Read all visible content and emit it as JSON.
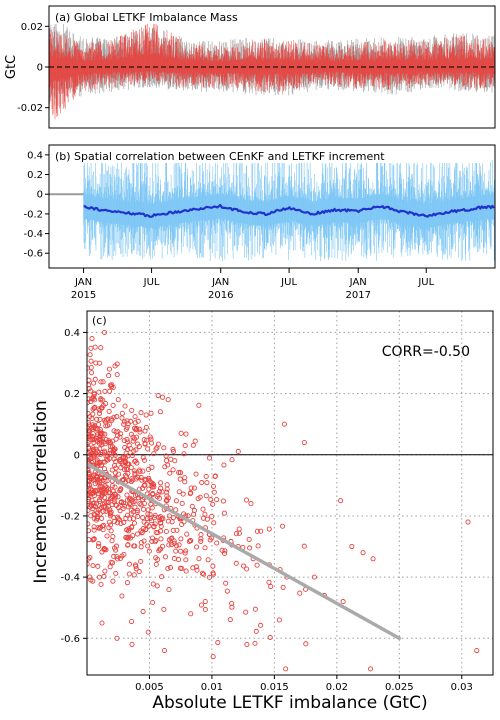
{
  "chart_data": [
    {
      "panel": "a",
      "type": "line",
      "title": "(a) Global LETKF Imbalance Mass",
      "ylabel": "GtC",
      "ylim": [
        -0.03,
        0.03
      ],
      "yticks": [
        -0.02,
        0,
        0.02
      ],
      "ytick_labels": [
        "-0.02",
        "0",
        "0.02"
      ],
      "x_range": [
        "2014-10-01",
        "2017-12-31"
      ],
      "reference_line": {
        "y": 0,
        "style": "dashed"
      },
      "series": [
        {
          "role": "spread",
          "color": "#9a9a9a",
          "x": [
            "2014-10",
            "2015-01",
            "2015-04",
            "2015-07",
            "2015-10",
            "2016-01",
            "2016-04",
            "2016-07",
            "2016-10",
            "2017-01",
            "2017-04",
            "2017-07",
            "2017-10",
            "2017-12"
          ],
          "low": [
            -0.022,
            -0.014,
            -0.012,
            -0.01,
            -0.013,
            -0.012,
            -0.014,
            -0.014,
            -0.011,
            -0.012,
            -0.014,
            -0.011,
            -0.012,
            -0.013
          ],
          "high": [
            0.028,
            0.014,
            0.016,
            0.02,
            0.014,
            0.013,
            0.015,
            0.014,
            0.013,
            0.014,
            0.015,
            0.015,
            0.017,
            0.016
          ]
        },
        {
          "role": "imbalance",
          "color": "#e8433f",
          "x": [
            "2014-10",
            "2015-01",
            "2015-04",
            "2015-07",
            "2015-10",
            "2016-01",
            "2016-04",
            "2016-07",
            "2016-10",
            "2017-01",
            "2017-04",
            "2017-07",
            "2017-10",
            "2017-12"
          ],
          "low": [
            -0.03,
            -0.012,
            -0.01,
            -0.008,
            -0.011,
            -0.01,
            -0.013,
            -0.012,
            -0.009,
            -0.011,
            -0.012,
            -0.009,
            -0.01,
            -0.011
          ],
          "high": [
            0.02,
            0.012,
            0.015,
            0.025,
            0.012,
            0.011,
            0.014,
            0.013,
            0.011,
            0.012,
            0.014,
            0.013,
            0.016,
            0.014
          ]
        }
      ]
    },
    {
      "panel": "b",
      "type": "line",
      "title": "(b) Spatial correlation between CEnKF and LETKF increment",
      "ylim": [
        -0.75,
        0.5
      ],
      "yticks": [
        -0.6,
        -0.4,
        -0.2,
        0,
        0.2,
        0.4
      ],
      "ytick_labels": [
        "-0.6",
        "-0.4",
        "-0.2",
        "0",
        "0.2",
        "0.4"
      ],
      "x_range": [
        "2014-10-01",
        "2017-12-31"
      ],
      "xticks": [
        {
          "date": "2015-01-01",
          "label": "JAN",
          "year": "2015"
        },
        {
          "date": "2015-07-01",
          "label": "JUL",
          "year": ""
        },
        {
          "date": "2016-01-01",
          "label": "JAN",
          "year": "2016"
        },
        {
          "date": "2016-07-01",
          "label": "JUL",
          "year": ""
        },
        {
          "date": "2017-01-01",
          "label": "JAN",
          "year": "2017"
        },
        {
          "date": "2017-07-01",
          "label": "JUL",
          "year": ""
        }
      ],
      "series": [
        {
          "role": "daily",
          "color": "#7cc6f5",
          "start": "2015-01-01",
          "low": -0.68,
          "high": 0.42
        },
        {
          "role": "smoothed",
          "color": "#2233cc",
          "x": [
            "2015-01",
            "2015-03",
            "2015-05",
            "2015-07",
            "2015-09",
            "2015-11",
            "2016-01",
            "2016-03",
            "2016-05",
            "2016-07",
            "2016-09",
            "2016-11",
            "2017-01",
            "2017-03",
            "2017-05",
            "2017-07",
            "2017-09",
            "2017-11",
            "2017-12"
          ],
          "values": [
            -0.12,
            -0.17,
            -0.19,
            -0.22,
            -0.18,
            -0.15,
            -0.12,
            -0.18,
            -0.2,
            -0.14,
            -0.2,
            -0.16,
            -0.17,
            -0.12,
            -0.18,
            -0.22,
            -0.18,
            -0.15,
            -0.13
          ]
        },
        {
          "role": "before-start",
          "color": "#9a9a9a",
          "x": [
            "2014-10",
            "2015-01"
          ],
          "values": [
            0,
            0
          ]
        }
      ]
    },
    {
      "panel": "c",
      "type": "scatter",
      "title": "(c)",
      "annotation": "CORR=-0.50",
      "xlabel": "Absolute LETKF imbalance (GtC)",
      "ylabel": "Increment correlation",
      "xlim": [
        0,
        0.0325
      ],
      "ylim": [
        -0.72,
        0.47
      ],
      "xticks": [
        0.005,
        0.01,
        0.015,
        0.02,
        0.025,
        0.03
      ],
      "xtick_labels": [
        "0.005",
        "0.01",
        "0.015",
        "0.02",
        "0.025",
        "0.03"
      ],
      "yticks": [
        -0.6,
        -0.4,
        -0.2,
        0,
        0.2,
        0.4
      ],
      "ytick_labels": [
        "-0.6",
        "-0.4",
        "-0.2",
        "0",
        "0.2",
        "0.4"
      ],
      "grid": true,
      "reference_line": {
        "y": 0,
        "style": "solid"
      },
      "regression_line": {
        "x": [
          0,
          0.025
        ],
        "y": [
          -0.03,
          -0.6
        ],
        "color": "#aaaaaa"
      },
      "points_color": "#e8433f",
      "points": {
        "x": [
          0.0004,
          0.0007,
          0.0011,
          0.0014,
          0.0018,
          0.0021,
          0.0025,
          0.0028,
          0.0032,
          0.0035,
          0.0039,
          0.0042,
          0.0047,
          0.0052,
          0.0058,
          0.0064,
          0.0071,
          0.0079,
          0.0088,
          0.0098,
          0.0109,
          0.0121,
          0.0133,
          0.0146,
          0.016,
          0.0175,
          0.019,
          0.0205,
          0.0012,
          0.0024,
          0.0036,
          0.0049,
          0.0062,
          0.0083,
          0.0101,
          0.0128,
          0.0154,
          0.0182,
          0.0221,
          0.0174,
          0.0212,
          0.0158,
          0.0229,
          0.0305,
          0.0312,
          0.0203,
          0.0227,
          0.0065,
          0.0111,
          0.0139
        ],
        "y": [
          0.38,
          0.3,
          0.35,
          0.4,
          0.28,
          0.22,
          0.18,
          0.12,
          0.05,
          0.02,
          -0.02,
          -0.05,
          -0.08,
          -0.1,
          -0.12,
          -0.15,
          -0.18,
          -0.2,
          -0.24,
          -0.26,
          -0.28,
          -0.3,
          -0.34,
          -0.36,
          -0.4,
          -0.44,
          -0.46,
          -0.48,
          -0.55,
          -0.6,
          -0.62,
          -0.58,
          -0.64,
          -0.52,
          -0.66,
          -0.62,
          -0.54,
          -0.4,
          -0.32,
          0.04,
          -0.3,
          0.1,
          -0.34,
          -0.22,
          -0.64,
          -0.15,
          -0.7,
          0.18,
          -0.42,
          -0.25
        ]
      }
    }
  ]
}
